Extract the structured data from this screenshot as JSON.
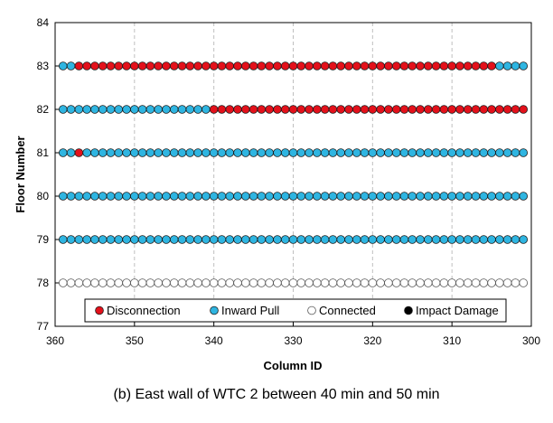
{
  "chart_data": {
    "type": "scatter",
    "xlabel": "Column ID",
    "ylabel": "Floor Number",
    "xlim": [
      360,
      300
    ],
    "xaxis_reversed": true,
    "ylim": [
      77,
      84
    ],
    "xticks": [
      360,
      350,
      340,
      330,
      320,
      310,
      300
    ],
    "yticks": [
      77,
      78,
      79,
      80,
      81,
      82,
      83,
      84
    ],
    "grid": "vertical-dashed",
    "legend_position": "bottom",
    "column_start": 359,
    "column_end": 301,
    "legend": [
      {
        "key": "disconnection",
        "label": "Disconnection",
        "color": "#e3111b"
      },
      {
        "key": "inward",
        "label": "Inward Pull",
        "color": "#2fb5e1"
      },
      {
        "key": "connected",
        "label": "Connected",
        "color": "#ffffff"
      },
      {
        "key": "impact",
        "label": "Impact Damage",
        "color": "#000000"
      }
    ],
    "rows": [
      {
        "floor": 83,
        "segments": [
          {
            "from": 359,
            "to": 358,
            "status": "inward"
          },
          {
            "from": 357,
            "to": 305,
            "status": "disconnection"
          },
          {
            "from": 304,
            "to": 301,
            "status": "inward"
          }
        ]
      },
      {
        "floor": 82,
        "segments": [
          {
            "from": 359,
            "to": 341,
            "status": "inward"
          },
          {
            "from": 340,
            "to": 301,
            "status": "disconnection"
          }
        ]
      },
      {
        "floor": 81,
        "segments": [
          {
            "from": 359,
            "to": 358,
            "status": "inward"
          },
          {
            "from": 357,
            "to": 357,
            "status": "disconnection"
          },
          {
            "from": 356,
            "to": 301,
            "status": "inward"
          }
        ]
      },
      {
        "floor": 80,
        "segments": [
          {
            "from": 359,
            "to": 301,
            "status": "inward"
          }
        ]
      },
      {
        "floor": 79,
        "segments": [
          {
            "from": 359,
            "to": 301,
            "status": "inward"
          }
        ]
      },
      {
        "floor": 78,
        "segments": [
          {
            "from": 359,
            "to": 301,
            "status": "connected"
          }
        ]
      }
    ]
  },
  "caption": "(b) East wall of WTC 2 between 40 min and 50 min"
}
